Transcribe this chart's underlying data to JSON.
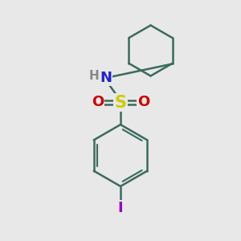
{
  "bg_color": "#e8e8e8",
  "bond_color": "#3a6b5e",
  "bond_width": 1.8,
  "S_color": "#cccc00",
  "N_color": "#2222cc",
  "O_color": "#cc0000",
  "I_color": "#9900cc",
  "H_color": "#888888",
  "figsize": [
    3.0,
    3.0
  ],
  "dpi": 100,
  "xlim": [
    0,
    10
  ],
  "ylim": [
    0,
    10
  ]
}
